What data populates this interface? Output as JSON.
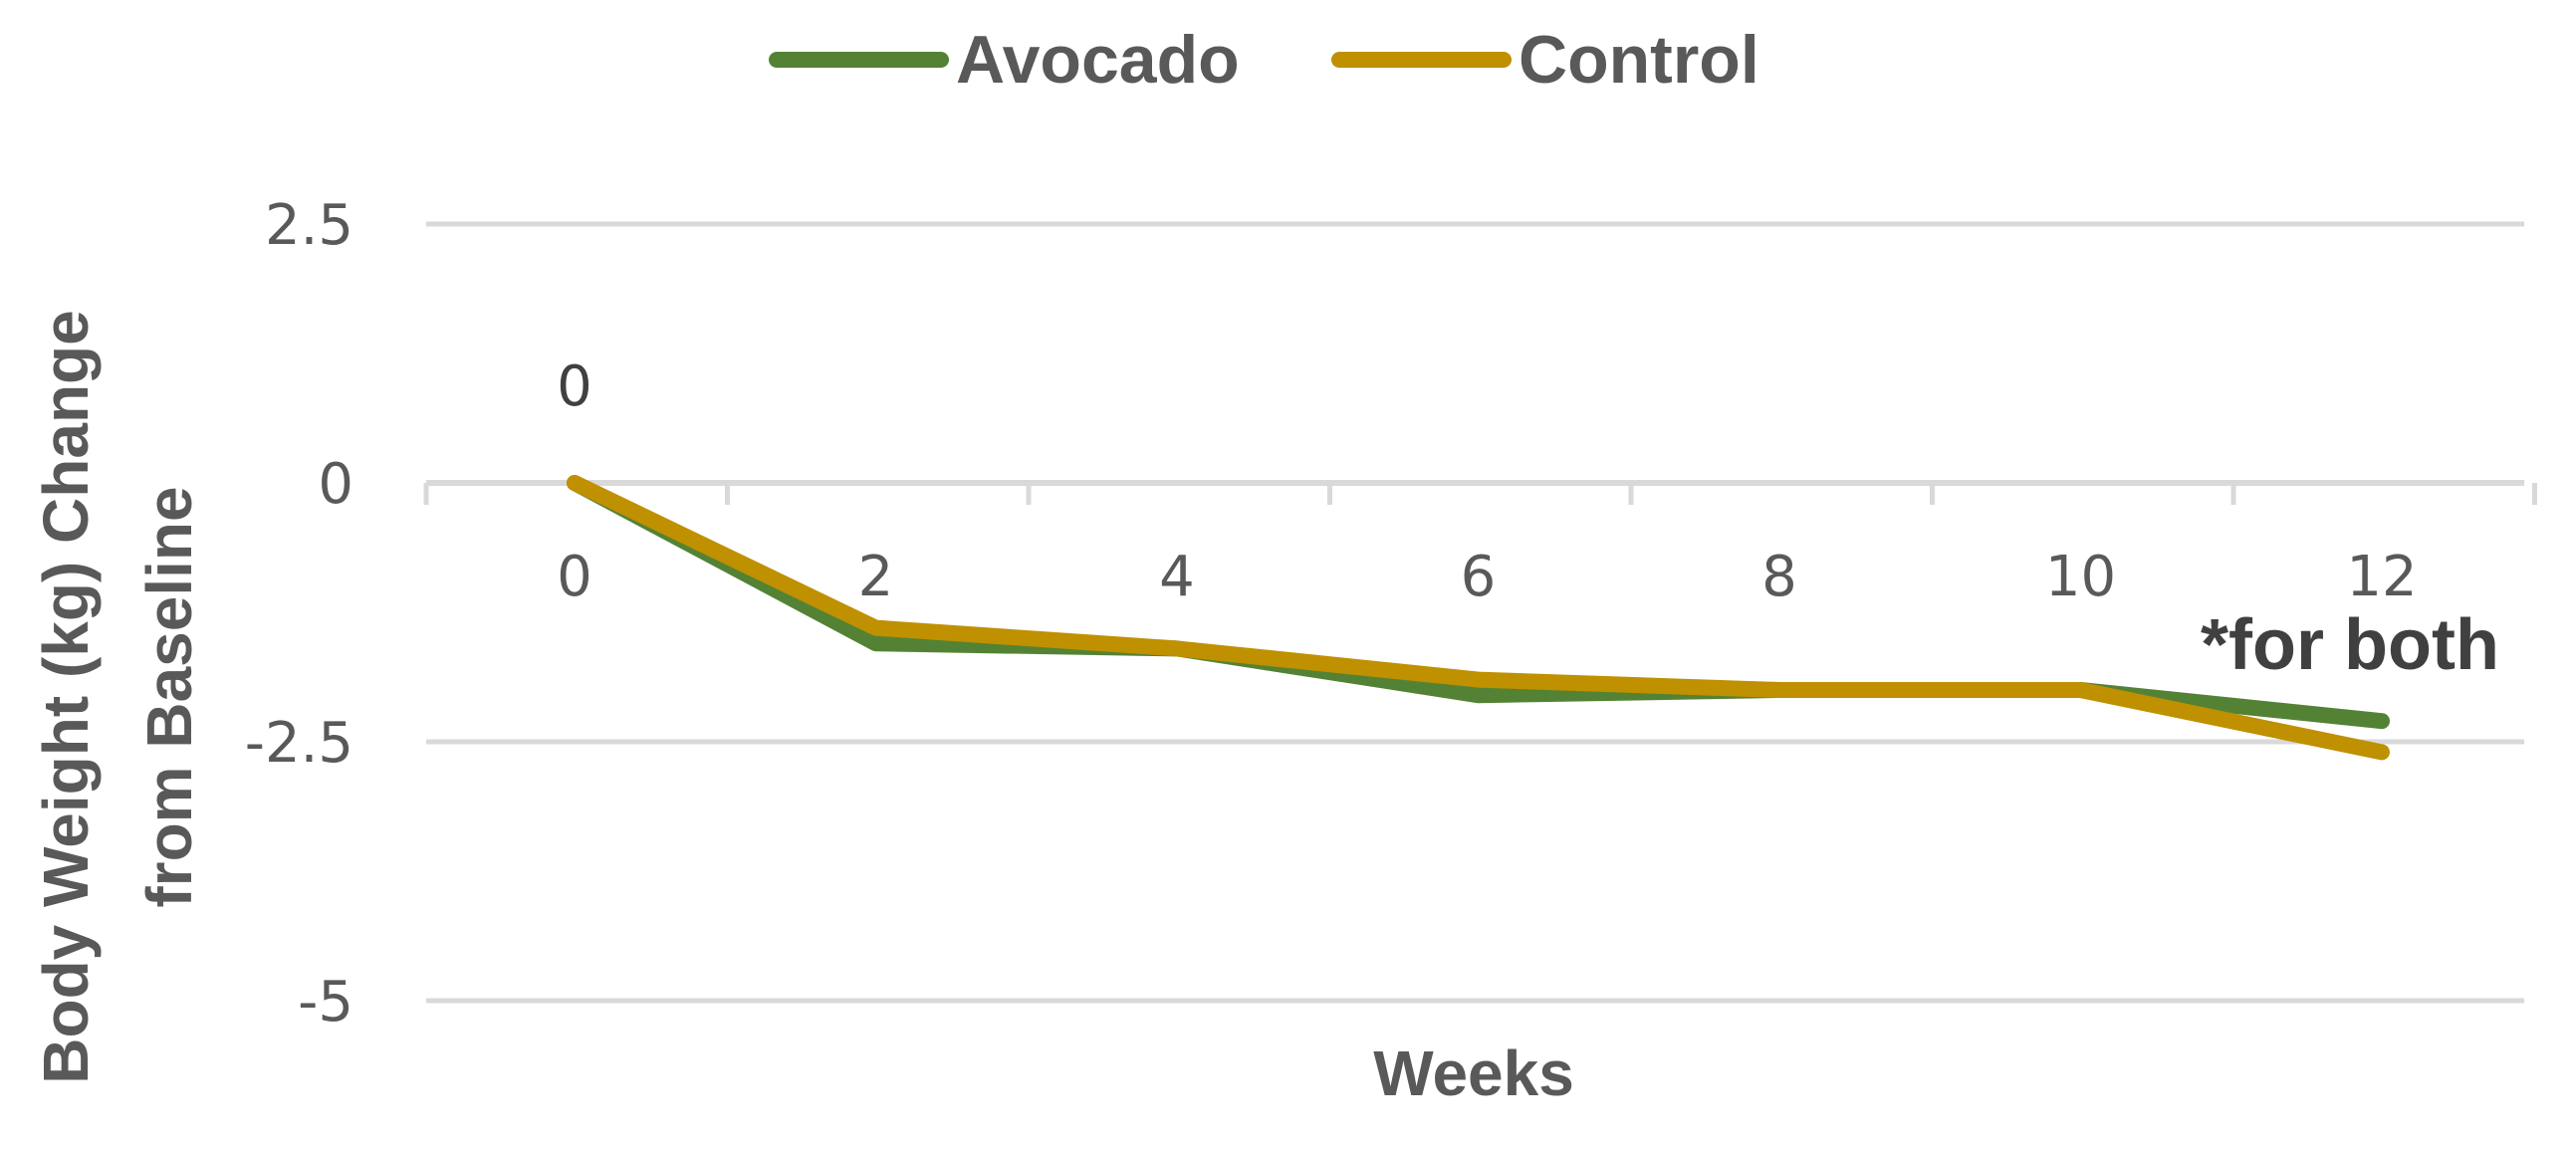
{
  "chart_data": {
    "type": "line",
    "x": [
      0,
      2,
      4,
      6,
      8,
      10,
      12
    ],
    "series": [
      {
        "name": "Avocado",
        "color": "#548235",
        "values": [
          0,
          -1.55,
          -1.6,
          -2.05,
          -2.0,
          -2.0,
          -2.3
        ]
      },
      {
        "name": "Control",
        "color": "#BF9000",
        "values": [
          0,
          -1.4,
          -1.6,
          -1.9,
          -2.0,
          -2.0,
          -2.6
        ]
      }
    ],
    "xlabel": "Weeks",
    "ylabel_line1": "Body Weight (kg) Change",
    "ylabel_line2": "from Baseline",
    "ylim": [
      -5,
      2.5
    ],
    "yticks": [
      "2.5",
      "0",
      "-2.5",
      "-5"
    ],
    "xticks": [
      "0",
      "2",
      "4",
      "6",
      "8",
      "10",
      "12"
    ],
    "grid": true,
    "legend_position": "top",
    "data_label": "0",
    "annotation": "*for both"
  }
}
